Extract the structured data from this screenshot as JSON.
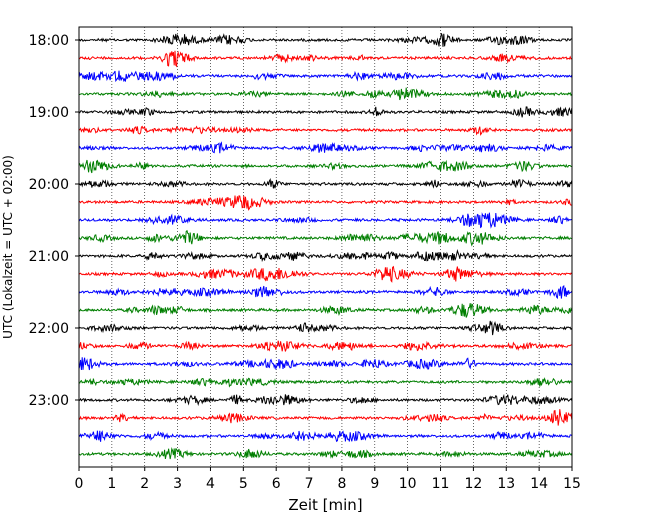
{
  "chart_data": {
    "type": "line",
    "title": "",
    "xlabel": "Zeit  [min]",
    "ylabel": "UTC (Lokalzeit = UTC + 02:00)",
    "xlim": [
      0,
      15
    ],
    "x_ticks": [
      "0",
      "1",
      "2",
      "3",
      "4",
      "5",
      "6",
      "7",
      "8",
      "9",
      "10",
      "11",
      "12",
      "13",
      "14",
      "15"
    ],
    "y_ticks": [
      "18:00",
      "19:00",
      "20:00",
      "21:00",
      "22:00",
      "23:00"
    ],
    "x_grid": "vertical dotted lines at every minute",
    "trace_interval_min": 15,
    "trace_start": "18:00",
    "trace_count": 24,
    "trace_colors": [
      "#000000",
      "#ff0000",
      "#0000ff",
      "#007f00"
    ]
  }
}
